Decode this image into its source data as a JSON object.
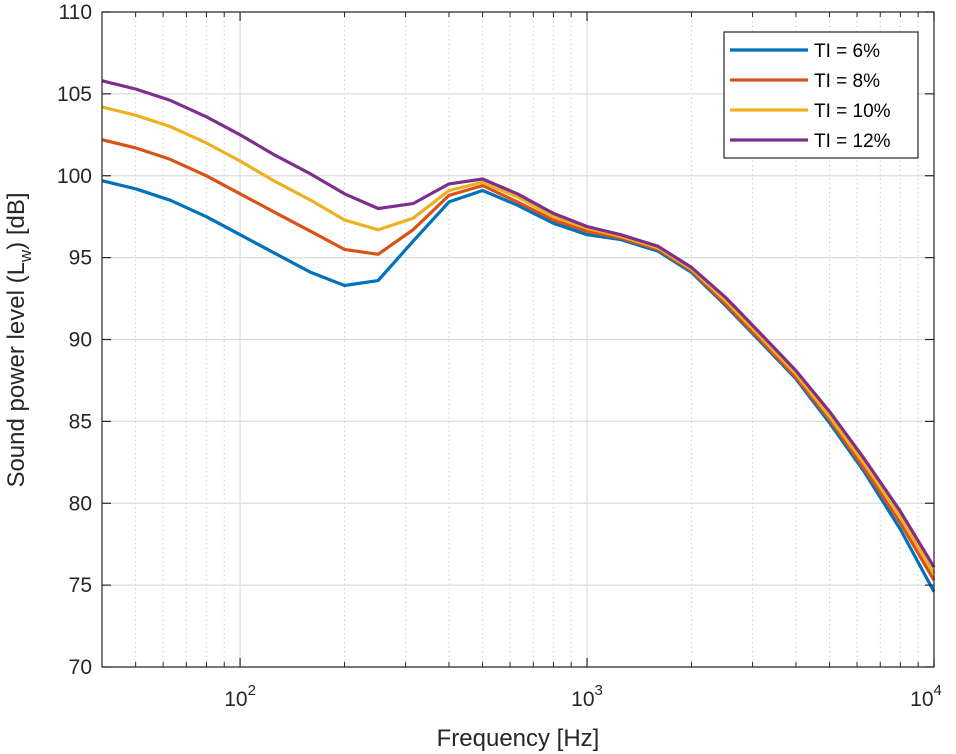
{
  "chart_data": {
    "type": "line",
    "x_scale": "log",
    "xlabel": "Frequency [Hz]",
    "ylabel_parts": [
      "Sound power level (L",
      "w",
      ") [dB]"
    ],
    "xlim": [
      40,
      10000
    ],
    "ylim": [
      70,
      110
    ],
    "grid": true,
    "legend_position": "top-right",
    "y_ticks": [
      70,
      75,
      80,
      85,
      90,
      95,
      100,
      105,
      110
    ],
    "x_major_ticks": [
      {
        "value": 100,
        "base": "10",
        "exp": "2"
      },
      {
        "value": 1000,
        "base": "10",
        "exp": "3"
      },
      {
        "value": 10000,
        "base": "10",
        "exp": "4"
      }
    ],
    "x_minor_ticks": [
      40,
      50,
      60,
      70,
      80,
      90,
      200,
      300,
      400,
      500,
      600,
      700,
      800,
      900,
      2000,
      3000,
      4000,
      5000,
      6000,
      7000,
      8000,
      9000
    ],
    "x": [
      40,
      50,
      63,
      80,
      100,
      125,
      160,
      200,
      250,
      315,
      400,
      500,
      630,
      800,
      1000,
      1250,
      1600,
      2000,
      2500,
      3150,
      4000,
      5000,
      6300,
      8000,
      10000
    ],
    "series": [
      {
        "name": "TI = 6%",
        "color": "#0072BD",
        "values": [
          99.7,
          99.2,
          98.5,
          97.5,
          96.4,
          95.3,
          94.1,
          93.3,
          93.6,
          96.0,
          98.4,
          99.1,
          98.2,
          97.1,
          96.4,
          96.1,
          95.4,
          94.1,
          92.1,
          89.9,
          87.6,
          84.9,
          81.9,
          78.4,
          74.6
        ]
      },
      {
        "name": "TI = 8%",
        "color": "#D95319",
        "values": [
          102.2,
          101.7,
          101.0,
          100.0,
          98.9,
          97.8,
          96.6,
          95.5,
          95.2,
          96.7,
          98.8,
          99.4,
          98.4,
          97.3,
          96.6,
          96.2,
          95.5,
          94.2,
          92.2,
          90.0,
          87.7,
          85.1,
          82.1,
          78.8,
          75.3
        ]
      },
      {
        "name": "TI = 10%",
        "color": "#EDB120",
        "values": [
          104.2,
          103.7,
          103.0,
          102.0,
          100.9,
          99.7,
          98.5,
          97.3,
          96.7,
          97.4,
          99.1,
          99.6,
          98.7,
          97.5,
          96.8,
          96.3,
          95.6,
          94.3,
          92.4,
          90.2,
          87.9,
          85.3,
          82.4,
          79.2,
          75.7
        ]
      },
      {
        "name": "TI = 12%",
        "color": "#7E2F8E",
        "values": [
          105.8,
          105.3,
          104.6,
          103.6,
          102.5,
          101.3,
          100.1,
          98.9,
          98.0,
          98.3,
          99.5,
          99.8,
          98.9,
          97.7,
          96.9,
          96.4,
          95.7,
          94.4,
          92.6,
          90.4,
          88.1,
          85.6,
          82.7,
          79.5,
          76.1
        ]
      }
    ]
  }
}
